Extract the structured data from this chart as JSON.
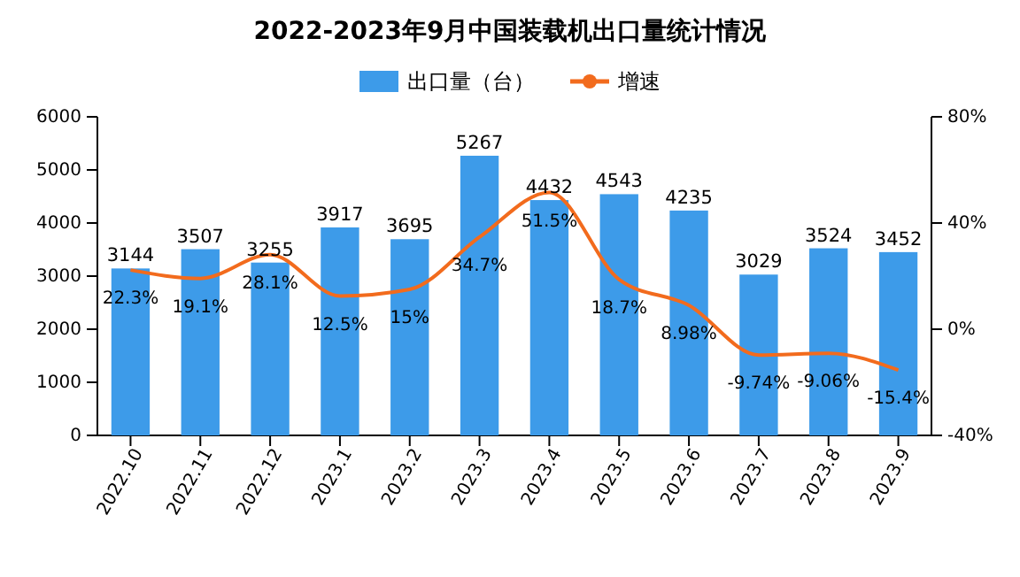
{
  "chart_data": {
    "type": "bar",
    "title": "2022-2023年9月中国装载机出口量统计情况",
    "categories": [
      "2022.10",
      "2022.11",
      "2022.12",
      "2023.1",
      "2023.2",
      "2023.3",
      "2023.4",
      "2023.5",
      "2023.6",
      "2023.7",
      "2023.8",
      "2023.9"
    ],
    "series": [
      {
        "name": "出口量（台）",
        "color": "#3d9be9",
        "values": [
          3144,
          3507,
          3255,
          3917,
          3695,
          5267,
          4432,
          4543,
          4235,
          3029,
          3524,
          3452
        ],
        "value_labels": [
          "3144",
          "3507",
          "3255",
          "3917",
          "3695",
          "5267",
          "4432",
          "4543",
          "4235",
          "3029",
          "3524",
          "3452"
        ]
      },
      {
        "name": "增速",
        "type": "line",
        "axis": "y2",
        "color": "#f26b1d",
        "values": [
          22.3,
          19.1,
          28.1,
          12.5,
          15,
          34.7,
          51.5,
          18.7,
          8.98,
          -9.74,
          -9.06,
          -15.4
        ],
        "value_labels": [
          "22.3%",
          "19.1%",
          "28.1%",
          "12.5%",
          "15%",
          "34.7%",
          "51.5%",
          "18.7%",
          "8.98%",
          "-9.74%",
          "-9.06%",
          "-15.4%"
        ]
      }
    ],
    "ylim": [
      0,
      6000
    ],
    "yticks": [
      0,
      1000,
      2000,
      3000,
      4000,
      5000,
      6000
    ],
    "y2lim": [
      -40,
      80
    ],
    "y2ticks": [
      {
        "value": -40,
        "label": "-40%"
      },
      {
        "value": 0,
        "label": "0%"
      },
      {
        "value": 40,
        "label": "40%"
      },
      {
        "value": 80,
        "label": "80%"
      }
    ],
    "legend": "top"
  }
}
